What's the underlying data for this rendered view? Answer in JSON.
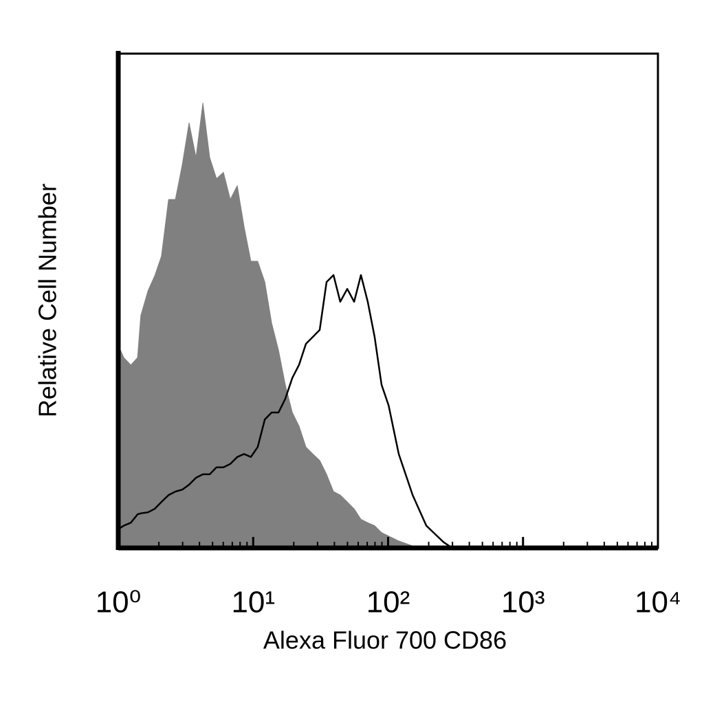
{
  "chart_data": {
    "type": "area",
    "x_label": "Alexa Fluor 700 CD86",
    "y_label": "Relative Cell Number",
    "xscale": "log",
    "xlim": [
      1,
      10000
    ],
    "ylim": [
      0,
      100
    ],
    "xticks": [
      {
        "value": 1,
        "label": "10⁰"
      },
      {
        "value": 10,
        "label": "10¹"
      },
      {
        "value": 100,
        "label": "10²"
      },
      {
        "value": 1000,
        "label": "10³"
      },
      {
        "value": 10000,
        "label": "10⁴"
      }
    ],
    "xminor_ticks": [
      2,
      3,
      4,
      5,
      6,
      7,
      8,
      9,
      20,
      30,
      40,
      50,
      60,
      70,
      80,
      90,
      200,
      300,
      400,
      500,
      600,
      700,
      800,
      900,
      2000,
      3000,
      4000,
      5000,
      6000,
      7000,
      8000,
      9000
    ],
    "x": [
      1,
      1.1,
      1.24,
      1.39,
      1.47,
      1.66,
      1.86,
      2.09,
      2.36,
      2.65,
      2.98,
      3.35,
      3.77,
      4.24,
      4.76,
      5.35,
      6.02,
      6.77,
      7.62,
      8.56,
      9.62,
      10.8,
      12.2,
      13.7,
      15.4,
      17.3,
      19.5,
      21.9,
      24.6,
      27.7,
      31.1,
      35.0,
      39.4,
      44.2,
      49.8,
      56.0,
      62.9,
      70.7,
      79.5,
      89.5,
      101,
      120,
      152,
      192,
      257,
      299
    ],
    "series": [
      {
        "color": "#808080",
        "fill": true,
        "values": [
          41,
          38.5,
          37,
          38.5,
          47,
          52,
          55,
          59,
          70.5,
          70.5,
          77.5,
          86,
          79,
          90,
          79,
          74.7,
          76,
          70.5,
          73.3,
          65,
          58,
          58,
          53.8,
          45.5,
          40,
          33,
          27.4,
          24.6,
          20.4,
          19,
          17.7,
          14.9,
          11.4,
          10.7,
          9.3,
          7.9,
          5.8,
          5.1,
          4.5,
          3.1,
          2.4,
          1.4,
          0.4,
          0,
          0,
          0
        ]
      },
      {
        "color": "#000000",
        "fill": false,
        "values": [
          3.8,
          4.5,
          5.1,
          6.8,
          7.0,
          7.2,
          7.9,
          9.3,
          10.7,
          11.4,
          11.8,
          12.8,
          14.2,
          14.9,
          14.9,
          16.3,
          16.3,
          17,
          18.4,
          19,
          18.4,
          20.4,
          26,
          27.4,
          27.4,
          30.2,
          34.4,
          37.1,
          41.3,
          42.7,
          44.1,
          53.8,
          55.2,
          49.8,
          52.4,
          49.8,
          55.2,
          49.8,
          42.7,
          33,
          28.8,
          19,
          10.7,
          4.5,
          1.2,
          0
        ]
      }
    ]
  }
}
